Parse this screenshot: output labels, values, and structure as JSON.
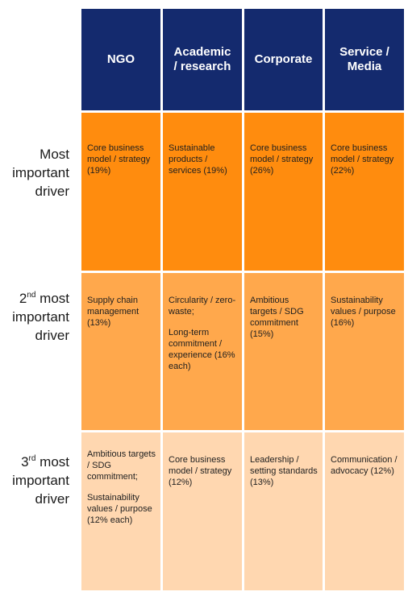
{
  "columns": [
    {
      "line1": "NGO",
      "line2": ""
    },
    {
      "line1": "Academic",
      "line2": "/ research"
    },
    {
      "line1": "Corporate",
      "line2": ""
    },
    {
      "line1": "Service /",
      "line2": "Media"
    }
  ],
  "rows": [
    {
      "label_prefix": "",
      "label_sup": "",
      "label_line1": "Most",
      "label_line2": "important",
      "label_line3": "driver",
      "cells": [
        {
          "para1": "Core business model / strategy (19%)",
          "para2": ""
        },
        {
          "para1": "Sustainable products / services (19%)",
          "para2": ""
        },
        {
          "para1": "Core business model / strategy (26%)",
          "para2": ""
        },
        {
          "para1": "Core business model / strategy (22%)",
          "para2": ""
        }
      ]
    },
    {
      "label_prefix": "2",
      "label_sup": "nd",
      "label_line1": " most",
      "label_line2": "important",
      "label_line3": "driver",
      "cells": [
        {
          "para1": "Supply chain management (13%)",
          "para2": ""
        },
        {
          "para1": "Circularity / zero-waste;",
          "para2": "Long-term commitment / experience (16% each)"
        },
        {
          "para1": "Ambitious targets / SDG commitment (15%)",
          "para2": ""
        },
        {
          "para1": "Sustainability values / purpose (16%)",
          "para2": ""
        }
      ]
    },
    {
      "label_prefix": "3",
      "label_sup": "rd",
      "label_line1": " most",
      "label_line2": "important",
      "label_line3": "driver",
      "cells": [
        {
          "para1": "Ambitious targets / SDG commitment;",
          "para2": "Sustainability values / purpose (12% each)"
        },
        {
          "para1": "Core business model / strategy (12%)",
          "para2": ""
        },
        {
          "para1": "Leadership / setting standards (13%)",
          "para2": ""
        },
        {
          "para1": "Communication / advocacy (12%)",
          "para2": ""
        }
      ]
    }
  ],
  "colors": {
    "header_bg": "#142a6e",
    "row1_bg": "#ff8c0e",
    "row2_bg": "#ffa84c",
    "row3_bg": "#ffd7b0"
  }
}
